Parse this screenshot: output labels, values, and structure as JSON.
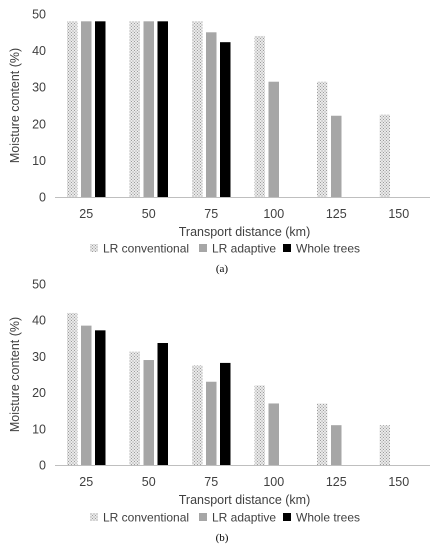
{
  "chart_data": [
    {
      "type": "bar",
      "panel_label": "(a)",
      "categories": [
        "25",
        "50",
        "75",
        "100",
        "125",
        "150"
      ],
      "series": [
        {
          "name": "LR conventional",
          "values": [
            48,
            48,
            48,
            44,
            31.5,
            22.5
          ],
          "pattern": "dotted-light"
        },
        {
          "name": "LR adaptive",
          "values": [
            48,
            48,
            45,
            31.5,
            22.2,
            null
          ],
          "color": "#a6a6a6"
        },
        {
          "name": "Whole trees",
          "values": [
            48,
            48,
            42.3,
            null,
            null,
            null
          ],
          "color": "#000000"
        }
      ],
      "xlabel": "Transport distance (km)",
      "ylabel": "Moisture content (%)",
      "ylim": [
        0,
        50
      ],
      "yticks": [
        "0",
        "10",
        "20",
        "30",
        "40",
        "50"
      ],
      "grid": false,
      "legend": "bottom"
    },
    {
      "type": "bar",
      "panel_label": "(b)",
      "categories": [
        "25",
        "50",
        "75",
        "100",
        "125",
        "150"
      ],
      "series": [
        {
          "name": "LR conventional",
          "values": [
            42,
            31.3,
            27.5,
            22,
            17,
            11
          ],
          "pattern": "dotted-light"
        },
        {
          "name": "LR adaptive",
          "values": [
            38.5,
            29,
            23,
            17,
            11,
            null
          ],
          "color": "#a6a6a6"
        },
        {
          "name": "Whole trees",
          "values": [
            37.2,
            33.7,
            28.2,
            null,
            null,
            null
          ],
          "color": "#000000"
        }
      ],
      "xlabel": "Transport distance (km)",
      "ylabel": "Moisture content (%)",
      "ylim": [
        0,
        50
      ],
      "yticks": [
        "0",
        "10",
        "20",
        "30",
        "40",
        "50"
      ],
      "grid": false,
      "legend": "bottom"
    }
  ]
}
